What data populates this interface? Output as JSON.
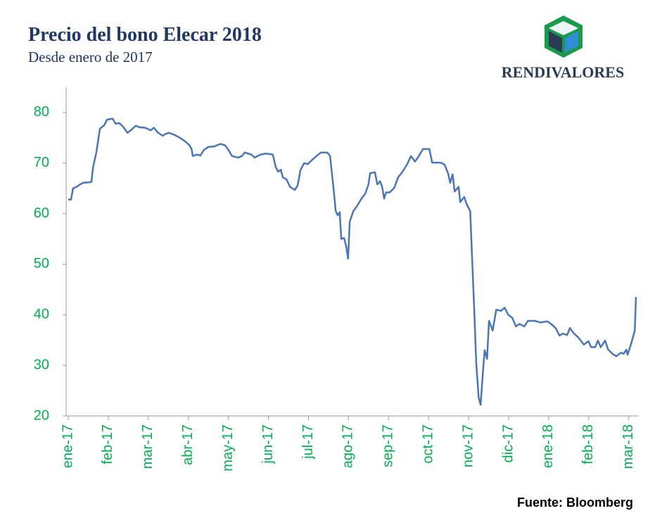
{
  "chart_data": {
    "type": "line",
    "title": "Precio del bono Elecar 2018",
    "subtitle": "Desde enero de 2017",
    "logo_text": "RENDIVALORES",
    "source": "Fuente: Bloomberg",
    "xlim": [
      0,
      14.25
    ],
    "xticks": [
      {
        "value": 0,
        "label": "ene-17"
      },
      {
        "value": 1,
        "label": "feb-17"
      },
      {
        "value": 2,
        "label": "mar-17"
      },
      {
        "value": 3,
        "label": "abr-17"
      },
      {
        "value": 4,
        "label": "may-17"
      },
      {
        "value": 5,
        "label": "jun-17"
      },
      {
        "value": 6,
        "label": "jul-17"
      },
      {
        "value": 7,
        "label": "ago-17"
      },
      {
        "value": 8,
        "label": "sep-17"
      },
      {
        "value": 9,
        "label": "oct-17"
      },
      {
        "value": 10,
        "label": "nov-17"
      },
      {
        "value": 11,
        "label": "dic-17"
      },
      {
        "value": 12,
        "label": "ene-18"
      },
      {
        "value": 13,
        "label": "feb-18"
      },
      {
        "value": 14,
        "label": "mar-18"
      }
    ],
    "ylim": [
      20,
      85
    ],
    "yticks": [
      20,
      30,
      40,
      50,
      60,
      70,
      80
    ],
    "grid": false,
    "series": [
      {
        "name": "Precio",
        "color": "#4a76b6",
        "x": [
          0,
          0.07,
          0.12,
          0.23,
          0.3,
          0.37,
          0.51,
          0.58,
          0.62,
          0.7,
          0.79,
          0.9,
          0.97,
          1.11,
          1.18,
          1.28,
          1.37,
          1.48,
          1.56,
          1.69,
          1.77,
          1.92,
          2.06,
          2.14,
          2.23,
          2.36,
          2.41,
          2.51,
          2.65,
          2.79,
          2.92,
          3.02,
          3.08,
          3.11,
          3.22,
          3.3,
          3.39,
          3.5,
          3.64,
          3.8,
          3.92,
          4.01,
          4.09,
          4.24,
          4.34,
          4.41,
          4.57,
          4.66,
          4.8,
          4.94,
          5.11,
          5.18,
          5.24,
          5.31,
          5.36,
          5.45,
          5.54,
          5.66,
          5.73,
          5.8,
          5.89,
          5.98,
          6.1,
          6.2,
          6.31,
          6.47,
          6.54,
          6.63,
          6.68,
          6.73,
          6.78,
          6.82,
          6.89,
          6.94,
          6.99,
          7.03,
          7.12,
          7.22,
          7.31,
          7.42,
          7.5,
          7.54,
          7.66,
          7.72,
          7.79,
          7.84,
          7.89,
          7.94,
          8.03,
          8.14,
          8.24,
          8.35,
          8.46,
          8.56,
          8.66,
          8.75,
          8.86,
          9.02,
          9.09,
          9.3,
          9.4,
          9.49,
          9.54,
          9.6,
          9.65,
          9.75,
          9.79,
          9.89,
          9.95,
          10.04,
          10.09,
          10.14,
          10.19,
          10.25,
          10.3,
          10.35,
          10.4,
          10.46,
          10.51,
          10.6,
          10.69,
          10.81,
          10.9,
          10.99,
          11.09,
          11.18,
          11.27,
          11.39,
          11.48,
          11.65,
          11.79,
          11.97,
          12.09,
          12.18,
          12.27,
          12.35,
          12.46,
          12.53,
          12.62,
          12.74,
          12.88,
          12.99,
          13.06,
          13.16,
          13.23,
          13.3,
          13.41,
          13.48,
          13.59,
          13.69,
          13.8,
          13.87,
          13.94,
          13.97,
          14.04,
          14.11,
          14.15,
          14.18
        ],
        "values": [
          62.8,
          62.8,
          65,
          65.4,
          65.8,
          66.1,
          66.2,
          66.3,
          69.2,
          72,
          76.8,
          77.5,
          78.6,
          78.8,
          77.8,
          77.9,
          77.2,
          76,
          76.5,
          77.4,
          77.1,
          77,
          76.5,
          77,
          76.1,
          75.4,
          75.7,
          76,
          75.6,
          75,
          74.3,
          73.6,
          72.8,
          71.4,
          71.7,
          71.5,
          72.6,
          73.2,
          73.3,
          73.8,
          73.5,
          72.5,
          71.4,
          71.1,
          71.4,
          72.1,
          71.7,
          71.1,
          71.7,
          71.9,
          71.7,
          69.3,
          68.3,
          68.7,
          67.2,
          66.8,
          65.3,
          64.7,
          65.6,
          68.6,
          70,
          69.8,
          70.7,
          71.4,
          72.1,
          72.1,
          71.4,
          64.7,
          60.5,
          59.7,
          60.3,
          55,
          55.2,
          53.6,
          51.1,
          58.4,
          60.5,
          61.6,
          62.8,
          64,
          65.8,
          68,
          68.2,
          65.8,
          66.4,
          65.3,
          63,
          64.2,
          64.2,
          65.1,
          67.2,
          68.3,
          69.7,
          71.4,
          70.3,
          71.3,
          72.8,
          72.8,
          70.1,
          70.1,
          69.7,
          67.9,
          66.1,
          67.8,
          64.4,
          65.3,
          62.3,
          63.3,
          61.9,
          60.5,
          50.8,
          41,
          30.6,
          23.6,
          22.2,
          27.8,
          33,
          31.3,
          38.8,
          36.9,
          41,
          40.8,
          41.4,
          40,
          39.4,
          37.7,
          38.2,
          37.7,
          38.8,
          38.8,
          38.5,
          38.7,
          38,
          37.3,
          35.9,
          36.3,
          36,
          37.4,
          36.4,
          35.5,
          34.1,
          34.8,
          33.6,
          33.6,
          34.9,
          33.6,
          34.9,
          33.2,
          32.3,
          31.8,
          32.5,
          32.3,
          33.1,
          32.1,
          33.8,
          35.7,
          36.9,
          43.5
        ]
      }
    ]
  }
}
